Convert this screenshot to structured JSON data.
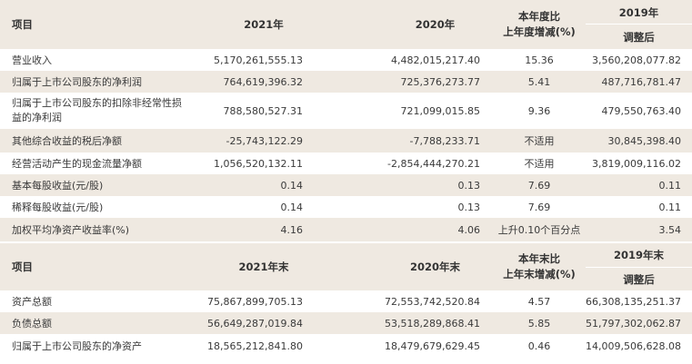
{
  "table1": {
    "header": {
      "item": "项目",
      "y2021": "2021年",
      "y2020": "2020年",
      "change_line1": "本年度比",
      "change_line2": "上年度增减(%)",
      "y2019": "2019年",
      "adjusted": "调整后"
    },
    "rows": [
      {
        "label": "营业收入",
        "v2021": "5,170,261,555.13",
        "v2020": "4,482,015,217.40",
        "change": "15.36",
        "v2019": "3,560,208,077.82"
      },
      {
        "label": "归属于上市公司股东的净利润",
        "v2021": "764,619,396.32",
        "v2020": "725,376,273.77",
        "change": "5.41",
        "v2019": "487,716,781.47"
      },
      {
        "label": "归属于上市公司股东的扣除非经常性损益的净利润",
        "v2021": "788,580,527.31",
        "v2020": "721,099,015.85",
        "change": "9.36",
        "v2019": "479,550,763.40"
      },
      {
        "label": "其他综合收益的税后净额",
        "v2021": "-25,743,122.29",
        "v2020": "-7,788,233.71",
        "change": "不适用",
        "v2019": "30,845,398.40"
      },
      {
        "label": "经营活动产生的现金流量净额",
        "v2021": "1,056,520,132.11",
        "v2020": "-2,854,444,270.21",
        "change": "不适用",
        "v2019": "3,819,009,116.02"
      },
      {
        "label": "基本每股收益(元/股)",
        "v2021": "0.14",
        "v2020": "0.13",
        "change": "7.69",
        "v2019": "0.11"
      },
      {
        "label": "稀释每股收益(元/股)",
        "v2021": "0.14",
        "v2020": "0.13",
        "change": "7.69",
        "v2019": "0.11"
      },
      {
        "label": "加权平均净资产收益率(%)",
        "v2021": "4.16",
        "v2020": "4.06",
        "change": "上升0.10个百分点",
        "v2019": "3.54"
      }
    ]
  },
  "table2": {
    "header": {
      "item": "项目",
      "y2021": "2021年末",
      "y2020": "2020年末",
      "change_line1": "本年末比",
      "change_line2": "上年末增减(%)",
      "y2019": "2019年末",
      "adjusted": "调整后"
    },
    "rows": [
      {
        "label": "资产总额",
        "v2021": "75,867,899,705.13",
        "v2020": "72,553,742,520.84",
        "change": "4.57",
        "v2019": "66,308,135,251.37"
      },
      {
        "label": "负债总额",
        "v2021": "56,649,287,019.84",
        "v2020": "53,518,289,868.41",
        "change": "5.85",
        "v2019": "51,797,302,062.87"
      },
      {
        "label": "归属于上市公司股东的净资产",
        "v2021": "18,565,212,841.80",
        "v2020": "18,479,679,629.45",
        "change": "0.46",
        "v2019": "14,009,506,628.08"
      }
    ]
  }
}
